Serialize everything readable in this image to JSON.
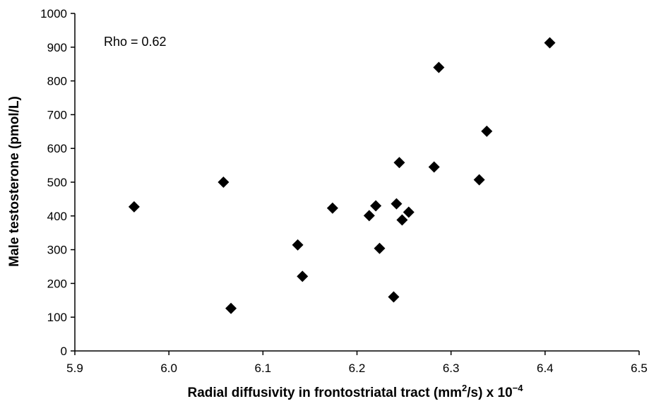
{
  "chart_data": {
    "type": "scatter",
    "xlabel": {
      "main": "Radial diffusivity in frontostriatal tract (mm",
      "sup": "2",
      "mid": "/s) x 10",
      "exp": "−4"
    },
    "ylabel": "Male testosterone (pmol/L)",
    "annotation": "Rho = 0.62",
    "xlim": [
      5.9,
      6.5
    ],
    "ylim": [
      0,
      1000
    ],
    "x_ticks": [
      "5.9",
      "6.0",
      "6.1",
      "6.2",
      "6.3",
      "6.4",
      "6.5"
    ],
    "y_ticks": [
      "0",
      "100",
      "200",
      "300",
      "400",
      "500",
      "600",
      "700",
      "800",
      "900",
      "1000"
    ],
    "grid": false,
    "legend": false,
    "marker": "diamond",
    "color": "#000000",
    "points": [
      {
        "x": 5.963,
        "y": 427
      },
      {
        "x": 6.058,
        "y": 500
      },
      {
        "x": 6.066,
        "y": 126
      },
      {
        "x": 6.137,
        "y": 314
      },
      {
        "x": 6.142,
        "y": 221
      },
      {
        "x": 6.174,
        "y": 423
      },
      {
        "x": 6.213,
        "y": 401
      },
      {
        "x": 6.22,
        "y": 430
      },
      {
        "x": 6.224,
        "y": 304
      },
      {
        "x": 6.239,
        "y": 160
      },
      {
        "x": 6.242,
        "y": 436
      },
      {
        "x": 6.245,
        "y": 558
      },
      {
        "x": 6.248,
        "y": 388
      },
      {
        "x": 6.255,
        "y": 411
      },
      {
        "x": 6.282,
        "y": 545
      },
      {
        "x": 6.287,
        "y": 840
      },
      {
        "x": 6.33,
        "y": 507
      },
      {
        "x": 6.338,
        "y": 651
      },
      {
        "x": 6.405,
        "y": 913
      }
    ]
  }
}
